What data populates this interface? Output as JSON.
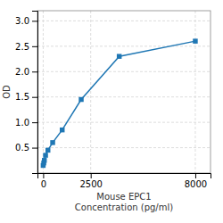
{
  "chart_data": {
    "type": "line",
    "x": [
      0,
      31.25,
      62.5,
      125,
      250,
      500,
      1000,
      2000,
      4000,
      8000
    ],
    "values": [
      0.15,
      0.2,
      0.25,
      0.35,
      0.45,
      0.6,
      0.85,
      1.45,
      2.3,
      2.6
    ],
    "marker": "square",
    "xlabel": "Mouse EPC1\nConcentration (pg/ml)",
    "ylabel": "OD",
    "xlim": [
      -300,
      8800
    ],
    "ylim": [
      0,
      3.2
    ],
    "xticks": [
      0,
      2500,
      8000
    ],
    "yticks": [
      0.5,
      {
        "value": 1.0,
        "label": "1.0"
      },
      1.5,
      {
        "value": 2.0,
        "label": "2.0"
      },
      2.5,
      {
        "value": 3.0,
        "label": "3.0"
      }
    ],
    "grid": true
  }
}
